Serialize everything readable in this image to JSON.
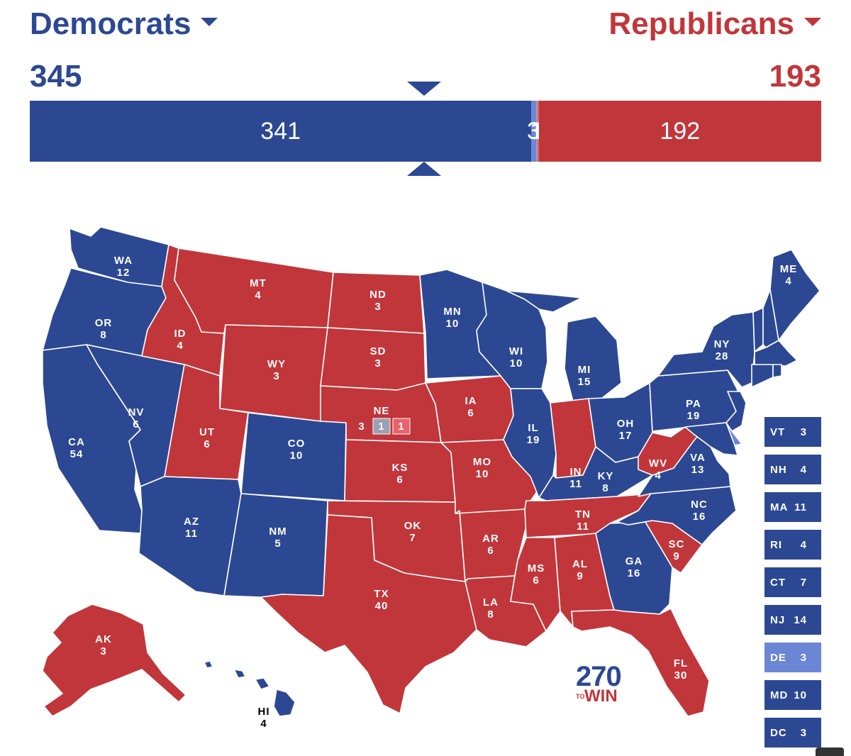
{
  "header": {
    "dem": {
      "label": "Democrats",
      "total": "345",
      "color": "#2c4893"
    },
    "rep": {
      "label": "Republicans",
      "total": "193",
      "color": "#c1363a"
    }
  },
  "bar": {
    "segments": [
      {
        "key": "safe-dem",
        "value": 341,
        "label": "341",
        "color": "#2c4893"
      },
      {
        "key": "likely-dem",
        "value": 3,
        "label": "3",
        "color": "#6c86d6"
      },
      {
        "key": "tossup",
        "value": 1,
        "label": "1",
        "color": "#9aa1b5"
      },
      {
        "key": "likely-rep",
        "value": 1,
        "label": "1",
        "color": "#e8636a"
      },
      {
        "key": "safe-rep",
        "value": 192,
        "label": "192",
        "color": "#c1363a"
      }
    ]
  },
  "colors": {
    "dem": "#2c4893",
    "rep": "#c1363a",
    "likely_dem": "#6c86d6",
    "tossup": "#9aa1b5",
    "likely_rep": "#e8636a"
  },
  "states": [
    {
      "abbr": "WA",
      "ev": "12",
      "party": "dem"
    },
    {
      "abbr": "OR",
      "ev": "8",
      "party": "dem"
    },
    {
      "abbr": "CA",
      "ev": "54",
      "party": "dem"
    },
    {
      "abbr": "NV",
      "ev": "6",
      "party": "dem"
    },
    {
      "abbr": "ID",
      "ev": "4",
      "party": "rep"
    },
    {
      "abbr": "MT",
      "ev": "4",
      "party": "rep"
    },
    {
      "abbr": "WY",
      "ev": "3",
      "party": "rep"
    },
    {
      "abbr": "UT",
      "ev": "6",
      "party": "rep"
    },
    {
      "abbr": "AZ",
      "ev": "11",
      "party": "dem"
    },
    {
      "abbr": "CO",
      "ev": "10",
      "party": "dem"
    },
    {
      "abbr": "NM",
      "ev": "5",
      "party": "dem"
    },
    {
      "abbr": "ND",
      "ev": "3",
      "party": "rep"
    },
    {
      "abbr": "SD",
      "ev": "3",
      "party": "rep"
    },
    {
      "abbr": "NE",
      "ev": "3",
      "party": "rep"
    },
    {
      "abbr": "KS",
      "ev": "6",
      "party": "rep"
    },
    {
      "abbr": "OK",
      "ev": "7",
      "party": "rep"
    },
    {
      "abbr": "TX",
      "ev": "40",
      "party": "rep"
    },
    {
      "abbr": "MN",
      "ev": "10",
      "party": "dem"
    },
    {
      "abbr": "IA",
      "ev": "6",
      "party": "rep"
    },
    {
      "abbr": "MO",
      "ev": "10",
      "party": "rep"
    },
    {
      "abbr": "AR",
      "ev": "6",
      "party": "rep"
    },
    {
      "abbr": "LA",
      "ev": "8",
      "party": "rep"
    },
    {
      "abbr": "WI",
      "ev": "10",
      "party": "dem"
    },
    {
      "abbr": "IL",
      "ev": "19",
      "party": "dem"
    },
    {
      "abbr": "MI",
      "ev": "15",
      "party": "dem"
    },
    {
      "abbr": "IN",
      "ev": "11",
      "party": "rep"
    },
    {
      "abbr": "OH",
      "ev": "17",
      "party": "dem"
    },
    {
      "abbr": "KY",
      "ev": "8",
      "party": "dem"
    },
    {
      "abbr": "TN",
      "ev": "11",
      "party": "rep"
    },
    {
      "abbr": "MS",
      "ev": "6",
      "party": "rep"
    },
    {
      "abbr": "AL",
      "ev": "9",
      "party": "rep"
    },
    {
      "abbr": "GA",
      "ev": "16",
      "party": "dem"
    },
    {
      "abbr": "FL",
      "ev": "30",
      "party": "rep"
    },
    {
      "abbr": "SC",
      "ev": "9",
      "party": "rep"
    },
    {
      "abbr": "NC",
      "ev": "16",
      "party": "dem"
    },
    {
      "abbr": "VA",
      "ev": "13",
      "party": "dem"
    },
    {
      "abbr": "WV",
      "ev": "4",
      "party": "rep"
    },
    {
      "abbr": "PA",
      "ev": "19",
      "party": "dem"
    },
    {
      "abbr": "NY",
      "ev": "28",
      "party": "dem"
    },
    {
      "abbr": "ME",
      "ev": "4",
      "party": "dem"
    },
    {
      "abbr": "AK",
      "ev": "3",
      "party": "rep"
    },
    {
      "abbr": "HI",
      "ev": "4",
      "party": "dem"
    }
  ],
  "nebraska_districts": [
    {
      "ev": "1",
      "party": "tossup"
    },
    {
      "ev": "1",
      "party": "likely_rep"
    }
  ],
  "small_states": [
    {
      "abbr": "VT",
      "ev": "3",
      "party": "dem"
    },
    {
      "abbr": "NH",
      "ev": "4",
      "party": "dem"
    },
    {
      "abbr": "MA",
      "ev": "11",
      "party": "dem"
    },
    {
      "abbr": "RI",
      "ev": "4",
      "party": "dem"
    },
    {
      "abbr": "CT",
      "ev": "7",
      "party": "dem"
    },
    {
      "abbr": "NJ",
      "ev": "14",
      "party": "dem"
    },
    {
      "abbr": "DE",
      "ev": "3",
      "party": "likely_dem"
    },
    {
      "abbr": "MD",
      "ev": "10",
      "party": "dem"
    },
    {
      "abbr": "DC",
      "ev": "3",
      "party": "dem"
    }
  ],
  "logo": {
    "number": "270",
    "to": "TO",
    "win": "WIN"
  }
}
